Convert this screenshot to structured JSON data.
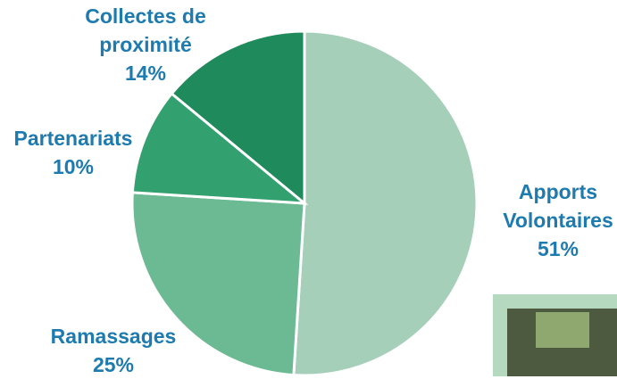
{
  "chart_data": {
    "type": "pie",
    "categories": [
      "Apports Volontaires",
      "Ramassages",
      "Partenariats",
      "Collectes de proximité"
    ],
    "values": [
      51,
      25,
      10,
      14
    ],
    "value_labels": [
      "51%",
      "25%",
      "10%",
      "14%"
    ],
    "colors": [
      "#a6cfba",
      "#6cba94",
      "#33a16f",
      "#1f8a5c"
    ],
    "label_color": "#1d7bb0"
  }
}
